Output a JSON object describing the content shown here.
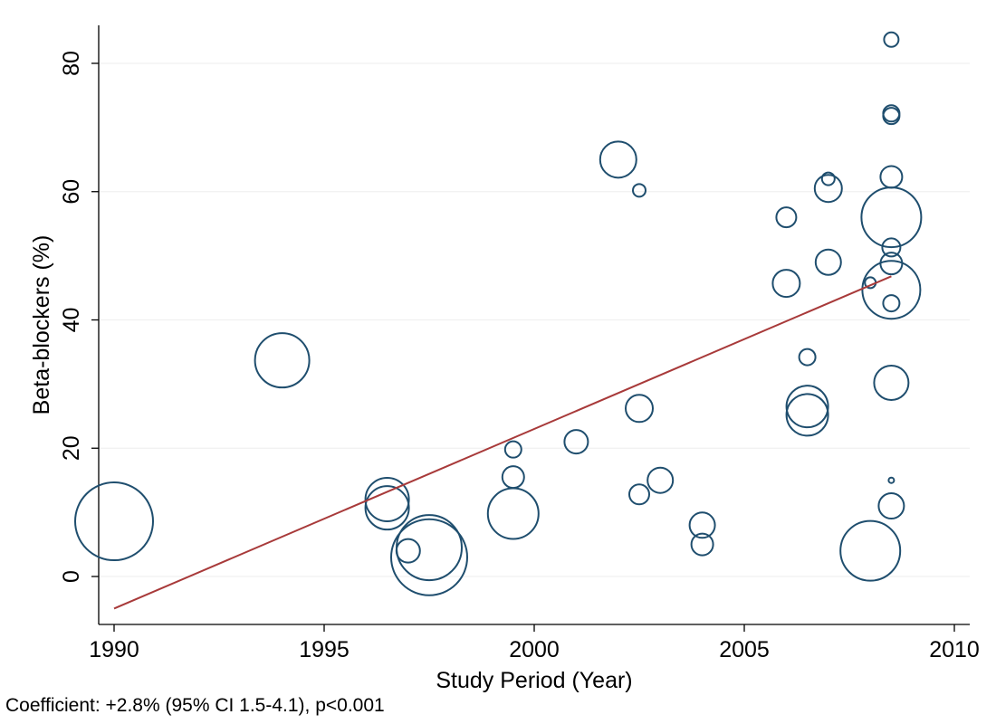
{
  "chart_data": {
    "type": "scatter",
    "subtype": "bubble",
    "title": "",
    "xlabel": "Study Period (Year)",
    "ylabel": "Beta-blockers (%)",
    "xlim": [
      1990,
      2010
    ],
    "ylim": [
      -7,
      86
    ],
    "xticks": [
      1990,
      1995,
      2000,
      2005,
      2010
    ],
    "yticks": [
      0,
      20,
      40,
      60,
      80
    ],
    "grid": "horizontal",
    "legend": "none",
    "bubble_color": "#1f4e6e",
    "fit_color": "#a83a3a",
    "series": [
      {
        "points": [
          {
            "x": 1990.0,
            "y": 8.6,
            "size": 43
          },
          {
            "x": 1994.0,
            "y": 33.7,
            "size": 30
          },
          {
            "x": 1996.5,
            "y": 12.0,
            "size": 24
          },
          {
            "x": 1996.5,
            "y": 10.7,
            "size": 24
          },
          {
            "x": 1997.0,
            "y": 4.0,
            "size": 13
          },
          {
            "x": 1997.5,
            "y": 4.5,
            "size": 36
          },
          {
            "x": 1997.5,
            "y": 3.0,
            "size": 42
          },
          {
            "x": 1999.5,
            "y": 19.8,
            "size": 9
          },
          {
            "x": 1999.5,
            "y": 15.5,
            "size": 12
          },
          {
            "x": 1999.5,
            "y": 9.8,
            "size": 28
          },
          {
            "x": 2001.0,
            "y": 21.0,
            "size": 13
          },
          {
            "x": 2002.0,
            "y": 65.0,
            "size": 20
          },
          {
            "x": 2002.5,
            "y": 60.2,
            "size": 7
          },
          {
            "x": 2002.5,
            "y": 26.2,
            "size": 15
          },
          {
            "x": 2002.5,
            "y": 12.8,
            "size": 11
          },
          {
            "x": 2003.0,
            "y": 15.0,
            "size": 14
          },
          {
            "x": 2004.0,
            "y": 8.0,
            "size": 14
          },
          {
            "x": 2004.0,
            "y": 5.0,
            "size": 12
          },
          {
            "x": 2006.0,
            "y": 56.0,
            "size": 11
          },
          {
            "x": 2006.0,
            "y": 45.7,
            "size": 15
          },
          {
            "x": 2006.5,
            "y": 34.2,
            "size": 9
          },
          {
            "x": 2006.5,
            "y": 26.5,
            "size": 23
          },
          {
            "x": 2006.5,
            "y": 25.2,
            "size": 23
          },
          {
            "x": 2007.0,
            "y": 62.0,
            "size": 7
          },
          {
            "x": 2007.0,
            "y": 60.5,
            "size": 15
          },
          {
            "x": 2007.0,
            "y": 49.0,
            "size": 14
          },
          {
            "x": 2008.0,
            "y": 45.8,
            "size": 6
          },
          {
            "x": 2008.0,
            "y": 4.0,
            "size": 33
          },
          {
            "x": 2008.5,
            "y": 83.7,
            "size": 8
          },
          {
            "x": 2008.5,
            "y": 72.2,
            "size": 9
          },
          {
            "x": 2008.5,
            "y": 71.8,
            "size": 9
          },
          {
            "x": 2008.5,
            "y": 62.3,
            "size": 12
          },
          {
            "x": 2008.5,
            "y": 56.0,
            "size": 33
          },
          {
            "x": 2008.5,
            "y": 51.3,
            "size": 10
          },
          {
            "x": 2008.5,
            "y": 48.8,
            "size": 12
          },
          {
            "x": 2008.5,
            "y": 44.7,
            "size": 32
          },
          {
            "x": 2008.5,
            "y": 42.6,
            "size": 9
          },
          {
            "x": 2008.5,
            "y": 30.2,
            "size": 19
          },
          {
            "x": 2008.5,
            "y": 15.0,
            "size": 3
          },
          {
            "x": 2008.5,
            "y": 11.0,
            "size": 14
          }
        ]
      }
    ],
    "fit_line": {
      "x": [
        1990.0,
        2008.5
      ],
      "y": [
        -5.0,
        46.8
      ]
    }
  },
  "annotation": {
    "coefficient_text": "Coefficient: +2.8% (95% CI 1.5-4.1), p<0.001"
  }
}
